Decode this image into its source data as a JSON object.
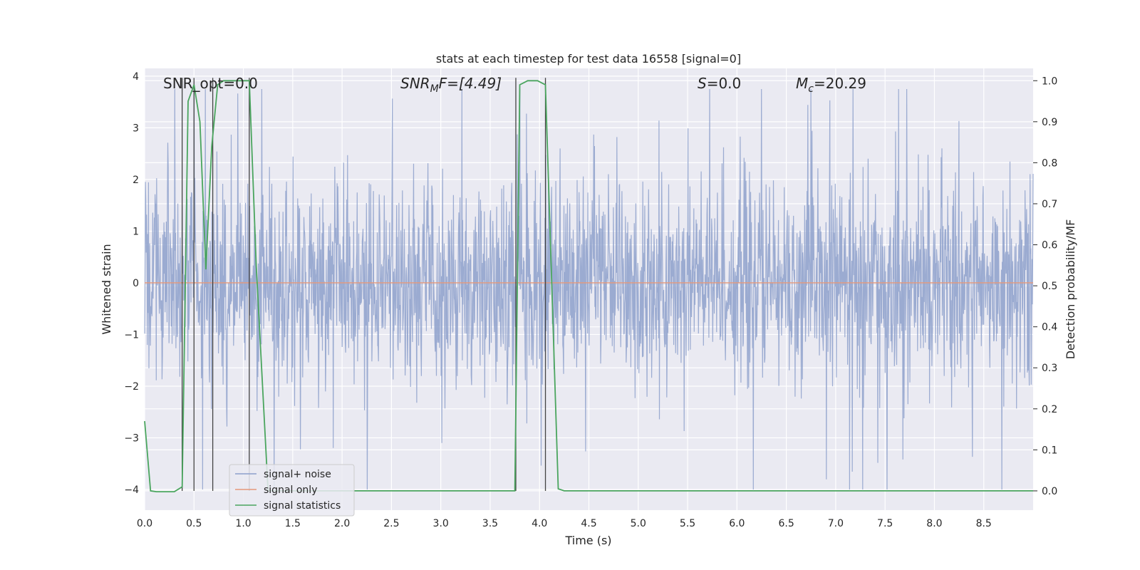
{
  "chart_data": {
    "type": "line",
    "title": "stats at each timestep for test data 16558 [signal=0]",
    "xlabel": "Time (s)",
    "ylabel": "Whitened strain",
    "y2label": "Detection probability/MF",
    "xlim": [
      0.0,
      9.0
    ],
    "ylim": [
      -4.4,
      4.15
    ],
    "y2lim": [
      -0.047,
      1.03
    ],
    "xticks": [
      "0.0",
      "0.5",
      "1.0",
      "1.5",
      "2.0",
      "2.5",
      "3.0",
      "3.5",
      "4.0",
      "4.5",
      "5.0",
      "5.5",
      "6.0",
      "6.5",
      "7.0",
      "7.5",
      "8.0",
      "8.5"
    ],
    "yticks": [
      "4",
      "3",
      "2",
      "1",
      "0",
      "−1",
      "−2",
      "−3",
      "−4"
    ],
    "y2ticks": [
      "1.0",
      "0.9",
      "0.8",
      "0.7",
      "0.6",
      "0.5",
      "0.4",
      "0.3",
      "0.2",
      "0.1",
      "0.0"
    ],
    "grid": true,
    "legend_position": "lower-left",
    "annotations": {
      "snr_opt": "SNR_opt=0.0",
      "snr_mf_main": "SNR",
      "snr_mf_sub": "M",
      "snr_mf_rest": "F=[4.49]",
      "s_italic": "S",
      "s_rest": "=0.0",
      "mc_main": "M",
      "mc_sub": "c",
      "mc_rest": "=20.29"
    },
    "series": [
      {
        "name": "signal+ noise",
        "color": "#8da0cb",
        "description_level": "noise band",
        "envelope": {
          "typical_abs": 1.7,
          "max": 3.75,
          "min": -4.0
        }
      },
      {
        "name": "signal only",
        "color": "#e5987a",
        "x": [
          0.0,
          9.0
        ],
        "y": [
          0.0,
          0.0
        ]
      },
      {
        "name": "signal statistics",
        "color": "#4aa55e",
        "axis": "right",
        "x": [
          0.0,
          0.06,
          0.12,
          0.3,
          0.38,
          0.44,
          0.5,
          0.56,
          0.62,
          0.68,
          0.74,
          0.8,
          0.9,
          1.06,
          1.13,
          1.25,
          2.0,
          3.0,
          3.75,
          3.8,
          3.88,
          3.98,
          4.06,
          4.19,
          4.25,
          5.0,
          6.0,
          7.0,
          8.0,
          9.0
        ],
        "y": [
          0.17,
          0.0,
          -0.002,
          -0.002,
          0.01,
          0.95,
          0.99,
          0.9,
          0.54,
          0.84,
          0.99,
          1.0,
          1.0,
          1.0,
          0.55,
          0.0,
          0.0,
          0.0,
          0.0,
          0.99,
          1.0,
          1.0,
          0.99,
          0.005,
          0.0,
          0.0,
          0.0,
          0.0,
          0.0,
          0.0
        ]
      }
    ],
    "vertical_markers": [
      0.38,
      0.5,
      0.69,
      1.06,
      3.76,
      4.06
    ]
  }
}
